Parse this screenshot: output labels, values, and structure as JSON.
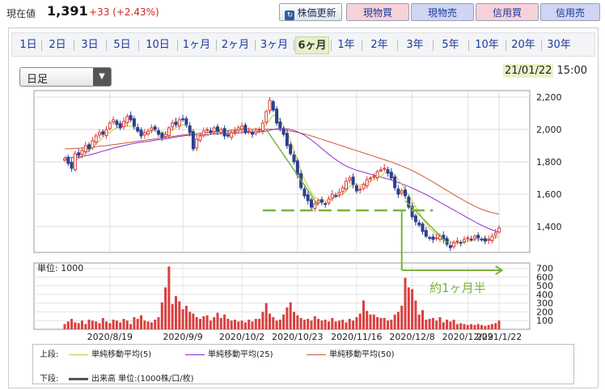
{
  "header": {
    "now_label": "現在値",
    "price": "1,391",
    "change": "+33 (+2.43%)",
    "buttons": {
      "update": "株価更新",
      "spot_buy": "現物買",
      "spot_sell": "現物売",
      "margin_buy": "信用買",
      "margin_sell": "信用売"
    }
  },
  "period_tabs": [
    "1日",
    "2日",
    "3日",
    "5日",
    "10日",
    "1ヶ月",
    "2ヶ月",
    "3ヶ月",
    "6ヶ月",
    "1年",
    "2年",
    "3年",
    "5年",
    "10年",
    "20年",
    "30年"
  ],
  "active_period": "6ヶ月",
  "candle_select": "日足",
  "datetime": {
    "date": "21/01/22",
    "time": "15:00"
  },
  "annotation": "約1ヶ月半",
  "legend": {
    "upper_label": "上段:",
    "lower_label": "下段:",
    "ma5": "単純移動平均(5)",
    "ma25": "単純移動平均(25)",
    "ma50": "単純移動平均(50)",
    "volume": "出来高 単位:(1000株/口/枚)"
  },
  "colors": {
    "up": "#d93a3a",
    "down": "#2d3f8f",
    "ma5": "#c4cc3c",
    "ma25": "#8a2ed0",
    "ma50": "#cc5a32",
    "volume_bar": "#d94040",
    "annotation": "#7ab23a",
    "active_tab": "#e7f1c7"
  },
  "chart_data": [
    {
      "type": "candlestick",
      "y_ticks": [
        1400,
        1600,
        1800,
        2000,
        2200
      ],
      "y_tick_labels": [
        "1,400",
        "1,600",
        "1,800",
        "2,000",
        "2,200"
      ],
      "ylim": [
        1240,
        2240
      ],
      "x_tick_labels": [
        "2020/8/19",
        "2020/9/9",
        "2020/10/2",
        "2020/10/23",
        "2020/11/16",
        "2020/12/8",
        "2020/12/29",
        "2021/1/22"
      ],
      "grid": true,
      "close": [
        1820,
        1790,
        1760,
        1850,
        1840,
        1870,
        1900,
        1880,
        1930,
        1960,
        1980,
        1970,
        2000,
        2040,
        2060,
        2030,
        2010,
        2050,
        2080,
        2060,
        2020,
        1990,
        1960,
        1980,
        1990,
        2010,
        2000,
        1970,
        1950,
        1970,
        2010,
        2040,
        2030,
        2060,
        2060,
        2030,
        1980,
        1880,
        1940,
        1960,
        1990,
        2000,
        1980,
        2010,
        1990,
        2000,
        1960,
        1960,
        1980,
        1990,
        2010,
        2020,
        1980,
        1990,
        1970,
        1990,
        2000,
        2040,
        2110,
        2180,
        2120,
        2040,
        2010,
        1970,
        1900,
        1850,
        1800,
        1720,
        1640,
        1590,
        1560,
        1520,
        1540,
        1560,
        1550,
        1540,
        1570,
        1600,
        1590,
        1610,
        1640,
        1680,
        1700,
        1660,
        1620,
        1630,
        1660,
        1690,
        1700,
        1710,
        1740,
        1750,
        1760,
        1730,
        1700,
        1640,
        1600,
        1620,
        1590,
        1520,
        1460,
        1430,
        1410,
        1370,
        1340,
        1330,
        1320,
        1330,
        1340,
        1320,
        1290,
        1270,
        1300,
        1310,
        1300,
        1320,
        1330,
        1320,
        1340,
        1330,
        1320,
        1310,
        1320,
        1340,
        1360,
        1391
      ],
      "ma5": [
        1820,
        1810,
        1790,
        1810,
        1820,
        1830,
        1850,
        1870,
        1890,
        1910,
        1930,
        1950,
        1970,
        1980,
        2000,
        2010,
        2020,
        2020,
        2020,
        2020,
        2010,
        2010,
        1990,
        1980,
        1980,
        1990,
        1990,
        1980,
        1980,
        1980,
        1990,
        2000,
        2010,
        2020,
        2030,
        2020,
        2010,
        1980,
        1970,
        1960,
        1960,
        1960,
        1970,
        1980,
        1980,
        1990,
        1990,
        1990,
        1980,
        1980,
        1990,
        1990,
        1990,
        1990,
        1990,
        1990,
        1990,
        2000,
        2030,
        2060,
        2090,
        2080,
        2060,
        2020,
        1990,
        1930,
        1870,
        1810,
        1750,
        1690,
        1650,
        1610,
        1580,
        1570,
        1560,
        1560,
        1560,
        1570,
        1580,
        1590,
        1600,
        1620,
        1650,
        1660,
        1660,
        1660,
        1660,
        1670,
        1680,
        1690,
        1700,
        1710,
        1730,
        1740,
        1730,
        1720,
        1690,
        1660,
        1630,
        1590,
        1560,
        1520,
        1490,
        1450,
        1420,
        1390,
        1370,
        1350,
        1340,
        1330,
        1320,
        1310,
        1300,
        1300,
        1300,
        1300,
        1310,
        1310,
        1320,
        1320,
        1320,
        1320,
        1320,
        1330,
        1330,
        1340
      ],
      "ma25": [
        1830,
        1828,
        1826,
        1828,
        1830,
        1833,
        1838,
        1842,
        1848,
        1853,
        1860,
        1866,
        1872,
        1878,
        1885,
        1890,
        1895,
        1900,
        1905,
        1910,
        1914,
        1918,
        1921,
        1924,
        1926,
        1930,
        1934,
        1937,
        1940,
        1942,
        1945,
        1950,
        1953,
        1957,
        1960,
        1963,
        1965,
        1966,
        1966,
        1966,
        1967,
        1968,
        1970,
        1972,
        1974,
        1975,
        1975,
        1975,
        1976,
        1977,
        1978,
        1980,
        1981,
        1982,
        1983,
        1984,
        1985,
        1987,
        1990,
        1995,
        2000,
        2004,
        2006,
        2006,
        2004,
        2000,
        1994,
        1986,
        1976,
        1964,
        1950,
        1935,
        1918,
        1900,
        1882,
        1864,
        1846,
        1830,
        1814,
        1800,
        1786,
        1774,
        1764,
        1756,
        1748,
        1742,
        1736,
        1730,
        1724,
        1718,
        1712,
        1706,
        1700,
        1694,
        1688,
        1680,
        1672,
        1664,
        1656,
        1648,
        1638,
        1628,
        1618,
        1608,
        1598,
        1586,
        1574,
        1562,
        1550,
        1538,
        1526,
        1514,
        1502,
        1490,
        1478,
        1466,
        1454,
        1442,
        1430,
        1418,
        1408,
        1398,
        1388,
        1380,
        1372,
        1365
      ],
      "ma50": [
        1880,
        1881,
        1882,
        1883,
        1884,
        1886,
        1888,
        1890,
        1892,
        1894,
        1896,
        1898,
        1900,
        1903,
        1906,
        1909,
        1912,
        1915,
        1918,
        1921,
        1924,
        1927,
        1930,
        1933,
        1936,
        1939,
        1942,
        1945,
        1948,
        1951,
        1954,
        1957,
        1960,
        1963,
        1966,
        1969,
        1971,
        1973,
        1975,
        1977,
        1979,
        1981,
        1983,
        1985,
        1987,
        1989,
        1991,
        1993,
        1995,
        1997,
        1999,
        2000,
        2001,
        2002,
        2002,
        2002,
        2002,
        2002,
        2002,
        2002,
        2001,
        2000,
        1998,
        1996,
        1993,
        1990,
        1986,
        1982,
        1977,
        1972,
        1966,
        1960,
        1953,
        1946,
        1939,
        1932,
        1925,
        1918,
        1911,
        1904,
        1897,
        1890,
        1883,
        1876,
        1869,
        1862,
        1855,
        1848,
        1841,
        1834,
        1827,
        1820,
        1813,
        1806,
        1799,
        1791,
        1783,
        1774,
        1765,
        1756,
        1746,
        1735,
        1724,
        1712,
        1700,
        1688,
        1675,
        1662,
        1649,
        1636,
        1623,
        1610,
        1597,
        1584,
        1572,
        1560,
        1548,
        1537,
        1526,
        1516,
        1507,
        1499,
        1492,
        1486,
        1481,
        1477
      ]
    },
    {
      "type": "bar",
      "series_name": "出来高",
      "unit_label": "単位: 1000",
      "y_ticks": [
        100,
        200,
        300,
        400,
        500,
        600,
        700
      ],
      "ylim": [
        0,
        760
      ],
      "values": [
        60,
        90,
        120,
        80,
        70,
        100,
        60,
        110,
        100,
        90,
        70,
        130,
        90,
        70,
        110,
        100,
        80,
        120,
        100,
        60,
        140,
        120,
        160,
        100,
        90,
        80,
        110,
        140,
        310,
        480,
        720,
        290,
        380,
        320,
        230,
        270,
        200,
        180,
        140,
        120,
        150,
        160,
        100,
        140,
        190,
        130,
        170,
        120,
        100,
        110,
        90,
        100,
        80,
        110,
        90,
        120,
        120,
        200,
        300,
        180,
        140,
        100,
        110,
        170,
        250,
        310,
        200,
        160,
        130,
        110,
        120,
        100,
        150,
        120,
        100,
        110,
        90,
        130,
        90,
        100,
        110,
        80,
        120,
        100,
        140,
        180,
        330,
        210,
        170,
        170,
        140,
        130,
        130,
        100,
        110,
        170,
        200,
        270,
        590,
        480,
        460,
        330,
        170,
        220,
        110,
        120,
        130,
        100,
        140,
        80,
        110,
        90,
        110,
        60,
        70,
        60,
        50,
        60,
        50,
        60,
        50,
        40,
        50,
        60,
        70,
        100
      ]
    }
  ]
}
